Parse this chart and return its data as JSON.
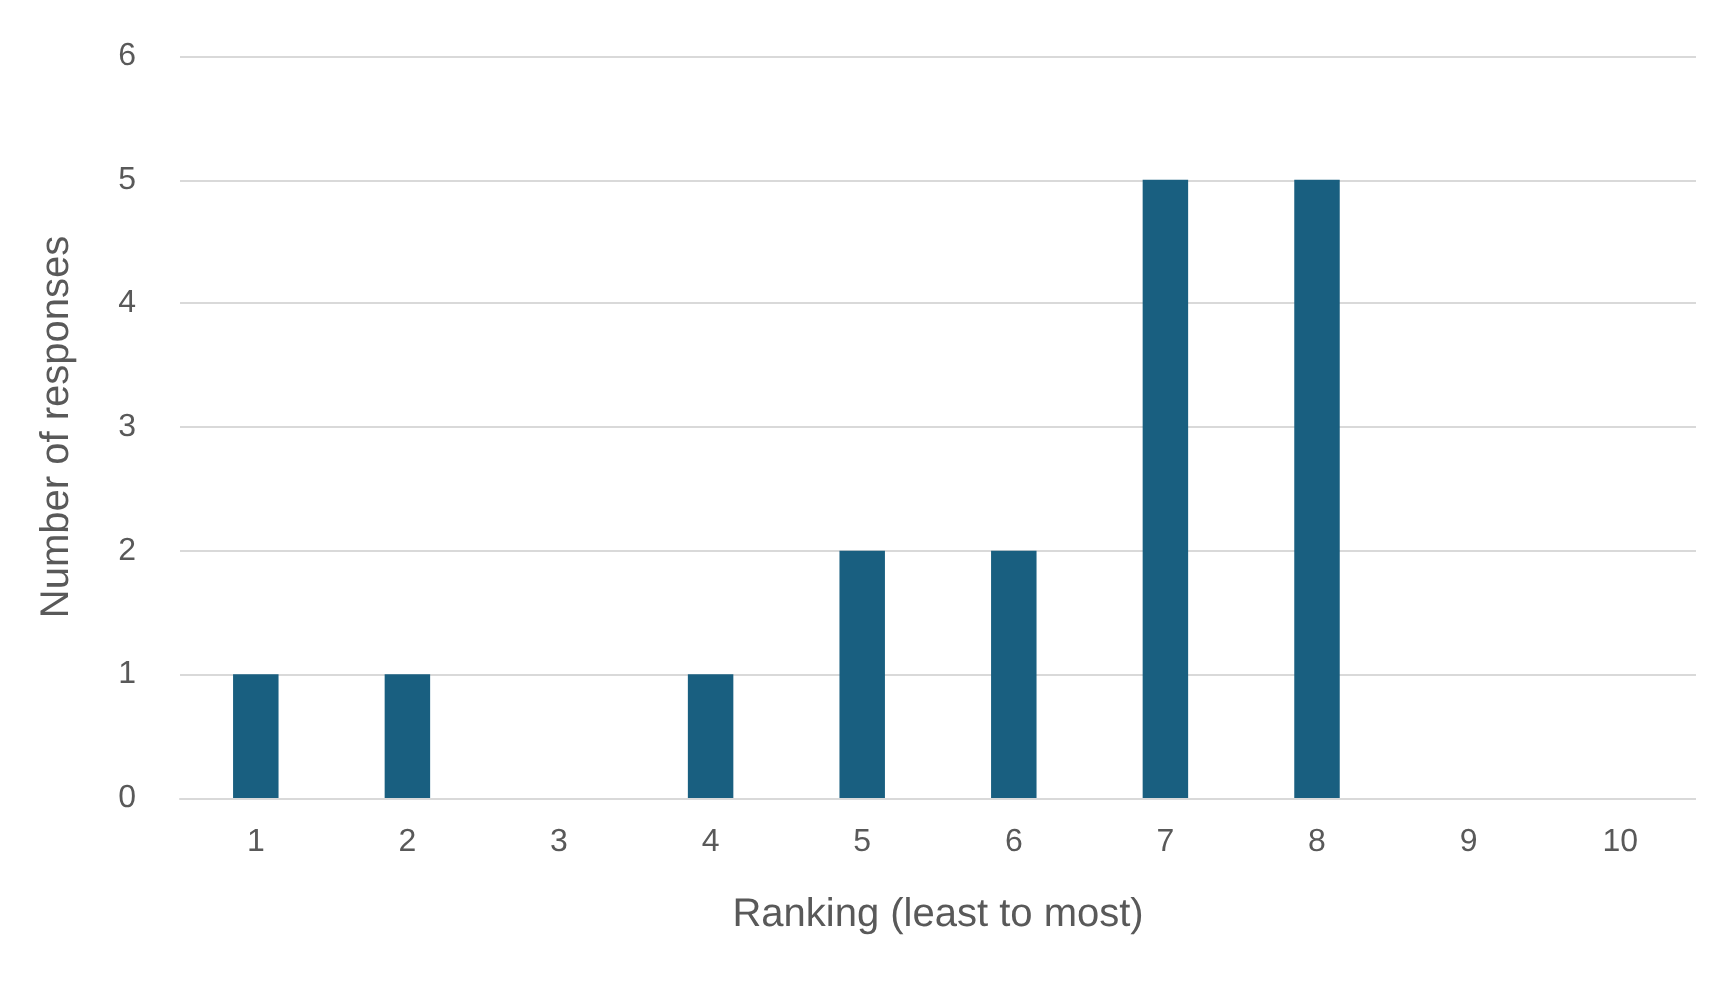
{
  "chart_data": {
    "type": "bar",
    "xlabel": "Ranking (least to most)",
    "ylabel": "Number of responses",
    "categories": [
      "1",
      "2",
      "3",
      "4",
      "5",
      "6",
      "7",
      "8",
      "9",
      "10"
    ],
    "values": [
      1,
      1,
      0,
      1,
      2,
      2,
      5,
      5,
      0,
      0
    ],
    "color": "#195f80",
    "ylim": [
      0,
      6
    ],
    "yticks": [
      0,
      1,
      2,
      3,
      4,
      5,
      6
    ],
    "grid": "y"
  }
}
